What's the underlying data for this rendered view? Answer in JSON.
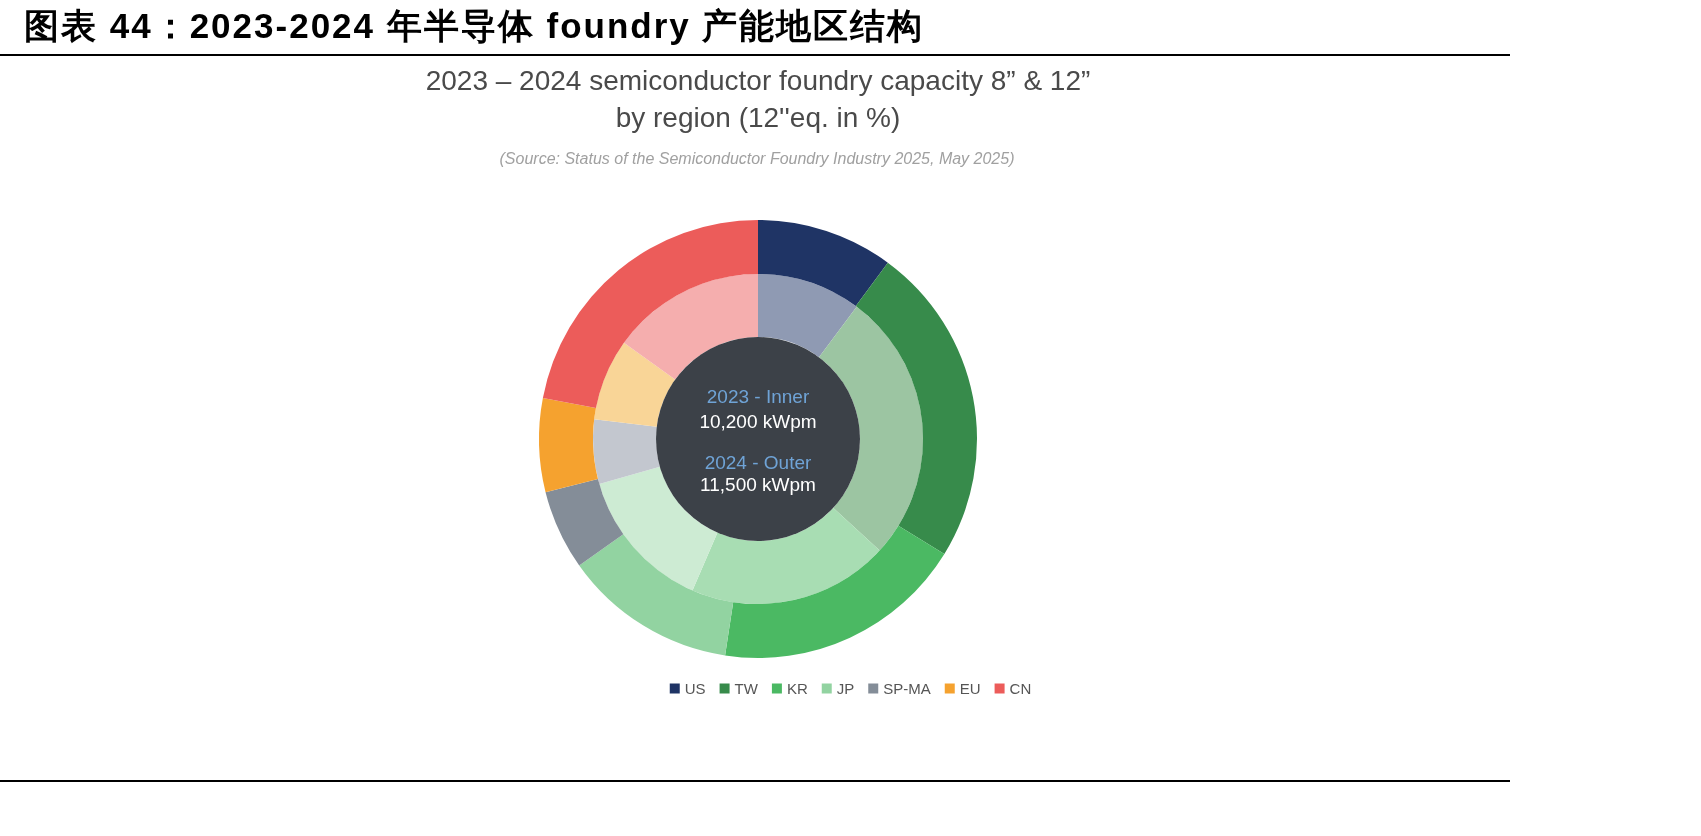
{
  "chart_data": {
    "type": "donut",
    "title": "图表 44：2023-2024 年半导体 foundry 产能地区结构",
    "subtitle": "2023 – 2024 semiconductor foundry capacity 8” & 12” by region (12''eq. in %)",
    "annotations": [
      "(Source: Status of the Semiconductor Foundry Industry 2025, May 2025)",
      "2023 - Inner",
      "10,200 kWpm",
      "2024 - Outer",
      "11,500 kWpm"
    ],
    "categories": [
      "US",
      "TW",
      "KR",
      "JP",
      "SP-MA",
      "EU",
      "CN"
    ],
    "series": [
      {
        "values": [
          10.2,
          26.6,
          19.7,
          14.1,
          6.3,
          8,
          15.1
        ],
        "colors": [
          "#8f9ab3",
          "#9cc5a2",
          "#a8ddb3",
          "#cdebd3",
          "#c3c7cf",
          "#f9d597",
          "#f5aeae"
        ]
      },
      {
        "values": [
          10.1,
          23.7,
          18.6,
          12.8,
          5.9,
          6.9,
          22.0
        ],
        "colors": [
          "#1f3465",
          "#378b4b",
          "#4bb963",
          "#92d3a1",
          "#848d98",
          "#f5a22f",
          "#ec5c5a"
        ]
      }
    ],
    "legend": "bottom"
  }
}
